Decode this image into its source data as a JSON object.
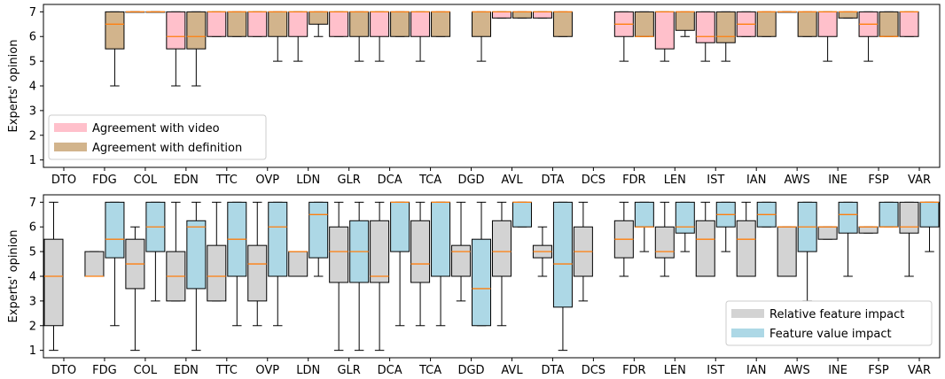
{
  "chart_data": [
    {
      "type": "box",
      "ylabel": "Experts' opinion",
      "ylim": [
        0.7,
        7.3
      ],
      "yticks": [
        1,
        2,
        3,
        4,
        5,
        6,
        7
      ],
      "categories": [
        "DTO",
        "FDG",
        "COL",
        "EDN",
        "TTC",
        "OVP",
        "LDN",
        "GLR",
        "DCA",
        "TCA",
        "DGD",
        "AVL",
        "DTA",
        "DCS",
        "FDR",
        "LEN",
        "IST",
        "IAN",
        "AWS",
        "INE",
        "FSP",
        "VAR"
      ],
      "legend_position": "lower-left",
      "series": [
        {
          "name": "Agreement with video",
          "color": "#ffc0cb",
          "boxes": [
            null,
            null,
            {
              "wlo": 7,
              "q1": 7,
              "med": 7,
              "q3": 7,
              "whi": 7
            },
            {
              "wlo": 4,
              "q1": 5.5,
              "med": 6,
              "q3": 7,
              "whi": 7
            },
            {
              "wlo": 6,
              "q1": 6,
              "med": 7,
              "q3": 7,
              "whi": 7
            },
            {
              "wlo": 6,
              "q1": 6,
              "med": 7,
              "q3": 7,
              "whi": 7
            },
            {
              "wlo": 5,
              "q1": 6,
              "med": 7,
              "q3": 7,
              "whi": 7
            },
            {
              "wlo": 6,
              "q1": 6,
              "med": 7,
              "q3": 7,
              "whi": 7
            },
            {
              "wlo": 5,
              "q1": 6,
              "med": 7,
              "q3": 7,
              "whi": 7
            },
            {
              "wlo": 5,
              "q1": 6,
              "med": 7,
              "q3": 7,
              "whi": 7
            },
            null,
            {
              "wlo": 6.75,
              "q1": 6.75,
              "med": 7,
              "q3": 7,
              "whi": 7
            },
            {
              "wlo": 6.75,
              "q1": 6.75,
              "med": 7,
              "q3": 7,
              "whi": 7
            },
            null,
            {
              "wlo": 5,
              "q1": 6,
              "med": 6.5,
              "q3": 7,
              "whi": 7
            },
            {
              "wlo": 5,
              "q1": 5.5,
              "med": 7,
              "q3": 7,
              "whi": 7
            },
            {
              "wlo": 5,
              "q1": 5.75,
              "med": 6,
              "q3": 7,
              "whi": 7
            },
            {
              "wlo": 6,
              "q1": 6,
              "med": 6.5,
              "q3": 7,
              "whi": 7
            },
            {
              "wlo": 7,
              "q1": 7,
              "med": 7,
              "q3": 7,
              "whi": 7
            },
            {
              "wlo": 5,
              "q1": 6,
              "med": 7,
              "q3": 7,
              "whi": 7
            },
            {
              "wlo": 5,
              "q1": 6,
              "med": 6.5,
              "q3": 7,
              "whi": 7
            },
            {
              "wlo": 6,
              "q1": 6,
              "med": 7,
              "q3": 7,
              "whi": 7
            }
          ]
        },
        {
          "name": "Agreement with definition",
          "color": "#d2b48c",
          "boxes": [
            null,
            {
              "wlo": 4,
              "q1": 5.5,
              "med": 6.5,
              "q3": 7,
              "whi": 7
            },
            {
              "wlo": 7,
              "q1": 7,
              "med": 7,
              "q3": 7,
              "whi": 7
            },
            {
              "wlo": 4,
              "q1": 5.5,
              "med": 6,
              "q3": 7,
              "whi": 7
            },
            {
              "wlo": 6,
              "q1": 6,
              "med": 7,
              "q3": 7,
              "whi": 7
            },
            {
              "wlo": 5,
              "q1": 6,
              "med": 7,
              "q3": 7,
              "whi": 7
            },
            {
              "wlo": 6,
              "q1": 6.5,
              "med": 7,
              "q3": 7,
              "whi": 7
            },
            {
              "wlo": 5,
              "q1": 6,
              "med": 7,
              "q3": 7,
              "whi": 7
            },
            {
              "wlo": 6,
              "q1": 6,
              "med": 7,
              "q3": 7,
              "whi": 7
            },
            {
              "wlo": 6,
              "q1": 6,
              "med": 7,
              "q3": 7,
              "whi": 7
            },
            {
              "wlo": 5,
              "q1": 6,
              "med": 7,
              "q3": 7,
              "whi": 7
            },
            {
              "wlo": 6.75,
              "q1": 6.75,
              "med": 7,
              "q3": 7,
              "whi": 7
            },
            {
              "wlo": 6,
              "q1": 6,
              "med": 7,
              "q3": 7,
              "whi": 7
            },
            null,
            {
              "wlo": 6,
              "q1": 6,
              "med": 6,
              "q3": 7,
              "whi": 7
            },
            {
              "wlo": 6,
              "q1": 6.25,
              "med": 7,
              "q3": 7,
              "whi": 7
            },
            {
              "wlo": 5,
              "q1": 5.75,
              "med": 6,
              "q3": 7,
              "whi": 7
            },
            {
              "wlo": 6,
              "q1": 6,
              "med": 7,
              "q3": 7,
              "whi": 7
            },
            {
              "wlo": 6,
              "q1": 6,
              "med": 7,
              "q3": 7,
              "whi": 7
            },
            {
              "wlo": 6.75,
              "q1": 6.75,
              "med": 7,
              "q3": 7,
              "whi": 7
            },
            {
              "wlo": 6,
              "q1": 6,
              "med": 6,
              "q3": 7,
              "whi": 7
            },
            null
          ]
        }
      ]
    },
    {
      "type": "box",
      "ylabel": "Experts' opinion",
      "ylim": [
        0.7,
        7.3
      ],
      "yticks": [
        1,
        2,
        3,
        4,
        5,
        6,
        7
      ],
      "categories": [
        "DTO",
        "FDG",
        "COL",
        "EDN",
        "TTC",
        "OVP",
        "LDN",
        "GLR",
        "DCA",
        "TCA",
        "DGD",
        "AVL",
        "DTA",
        "DCS",
        "FDR",
        "LEN",
        "IST",
        "IAN",
        "AWS",
        "INE",
        "FSP",
        "VAR"
      ],
      "legend_position": "lower-right",
      "series": [
        {
          "name": "Relative feature impact",
          "color": "#d3d3d3",
          "boxes": [
            {
              "wlo": 1,
              "q1": 2,
              "med": 4,
              "q3": 5.5,
              "whi": 7
            },
            {
              "wlo": 4,
              "q1": 4,
              "med": 4,
              "q3": 5,
              "whi": 5
            },
            {
              "wlo": 1,
              "q1": 3.5,
              "med": 4.5,
              "q3": 5.5,
              "whi": 6
            },
            {
              "wlo": 3,
              "q1": 3,
              "med": 4,
              "q3": 5,
              "whi": 7
            },
            {
              "wlo": 3,
              "q1": 3,
              "med": 4,
              "q3": 5.25,
              "whi": 7
            },
            {
              "wlo": 2,
              "q1": 3,
              "med": 4.5,
              "q3": 5.25,
              "whi": 7
            },
            {
              "wlo": 4,
              "q1": 4,
              "med": 5,
              "q3": 5,
              "whi": 5
            },
            {
              "wlo": 1,
              "q1": 3.75,
              "med": 5,
              "q3": 6,
              "whi": 7
            },
            {
              "wlo": 1,
              "q1": 3.75,
              "med": 4,
              "q3": 6.25,
              "whi": 7
            },
            {
              "wlo": 2,
              "q1": 3.75,
              "med": 4.5,
              "q3": 6.25,
              "whi": 7
            },
            {
              "wlo": 3,
              "q1": 4,
              "med": 5,
              "q3": 5.25,
              "whi": 7
            },
            {
              "wlo": 2,
              "q1": 4,
              "med": 5,
              "q3": 6.25,
              "whi": 7
            },
            {
              "wlo": 4,
              "q1": 4.75,
              "med": 5,
              "q3": 5.25,
              "whi": 6
            },
            {
              "wlo": 3,
              "q1": 4,
              "med": 5,
              "q3": 6,
              "whi": 7
            },
            {
              "wlo": 4,
              "q1": 4.75,
              "med": 5.5,
              "q3": 6.25,
              "whi": 7
            },
            {
              "wlo": 4,
              "q1": 4.75,
              "med": 5,
              "q3": 6,
              "whi": 7
            },
            {
              "wlo": 4,
              "q1": 4,
              "med": 5.5,
              "q3": 6.25,
              "whi": 7
            },
            {
              "wlo": 4,
              "q1": 4,
              "med": 5.5,
              "q3": 6.25,
              "whi": 7
            },
            {
              "wlo": 4,
              "q1": 4,
              "med": 6,
              "q3": 6,
              "whi": 6
            },
            {
              "wlo": 5.5,
              "q1": 5.5,
              "med": 6,
              "q3": 6,
              "whi": 6
            },
            {
              "wlo": 5.75,
              "q1": 5.75,
              "med": 6,
              "q3": 6,
              "whi": 6
            },
            {
              "wlo": 4,
              "q1": 5.75,
              "med": 6,
              "q3": 7,
              "whi": 7
            }
          ]
        },
        {
          "name": "Feature value impact",
          "color": "#add8e6",
          "boxes": [
            null,
            {
              "wlo": 2,
              "q1": 4.75,
              "med": 5.5,
              "q3": 7,
              "whi": 7
            },
            {
              "wlo": 3,
              "q1": 5,
              "med": 6,
              "q3": 7,
              "whi": 7
            },
            {
              "wlo": 1,
              "q1": 3.5,
              "med": 6,
              "q3": 6.25,
              "whi": 7
            },
            {
              "wlo": 2,
              "q1": 4,
              "med": 5.5,
              "q3": 7,
              "whi": 7
            },
            {
              "wlo": 2,
              "q1": 4,
              "med": 6,
              "q3": 7,
              "whi": 7
            },
            {
              "wlo": 4,
              "q1": 4.75,
              "med": 6.5,
              "q3": 7,
              "whi": 7
            },
            {
              "wlo": 1,
              "q1": 3.75,
              "med": 5,
              "q3": 6.25,
              "whi": 7
            },
            {
              "wlo": 2,
              "q1": 5,
              "med": 7,
              "q3": 7,
              "whi": 7
            },
            {
              "wlo": 2,
              "q1": 4,
              "med": 7,
              "q3": 7,
              "whi": 7
            },
            {
              "wlo": 2,
              "q1": 2,
              "med": 3.5,
              "q3": 5.5,
              "whi": 7
            },
            {
              "wlo": 6,
              "q1": 6,
              "med": 7,
              "q3": 7,
              "whi": 7
            },
            {
              "wlo": 1,
              "q1": 2.75,
              "med": 4.5,
              "q3": 7,
              "whi": 7
            },
            null,
            {
              "wlo": 5,
              "q1": 6,
              "med": 6,
              "q3": 7,
              "whi": 7
            },
            {
              "wlo": 5,
              "q1": 5.75,
              "med": 6,
              "q3": 7,
              "whi": 7
            },
            {
              "wlo": 5,
              "q1": 6,
              "med": 6.5,
              "q3": 7,
              "whi": 7
            },
            {
              "wlo": 6,
              "q1": 6,
              "med": 6.5,
              "q3": 7,
              "whi": 7
            },
            {
              "wlo": 3,
              "q1": 5,
              "med": 6,
              "q3": 7,
              "whi": 7
            },
            {
              "wlo": 4,
              "q1": 5.75,
              "med": 6.5,
              "q3": 7,
              "whi": 7
            },
            {
              "wlo": 6,
              "q1": 6,
              "med": 6,
              "q3": 7,
              "whi": 7
            },
            {
              "wlo": 5,
              "q1": 6,
              "med": 7,
              "q3": 7,
              "whi": 7
            }
          ]
        }
      ]
    }
  ]
}
